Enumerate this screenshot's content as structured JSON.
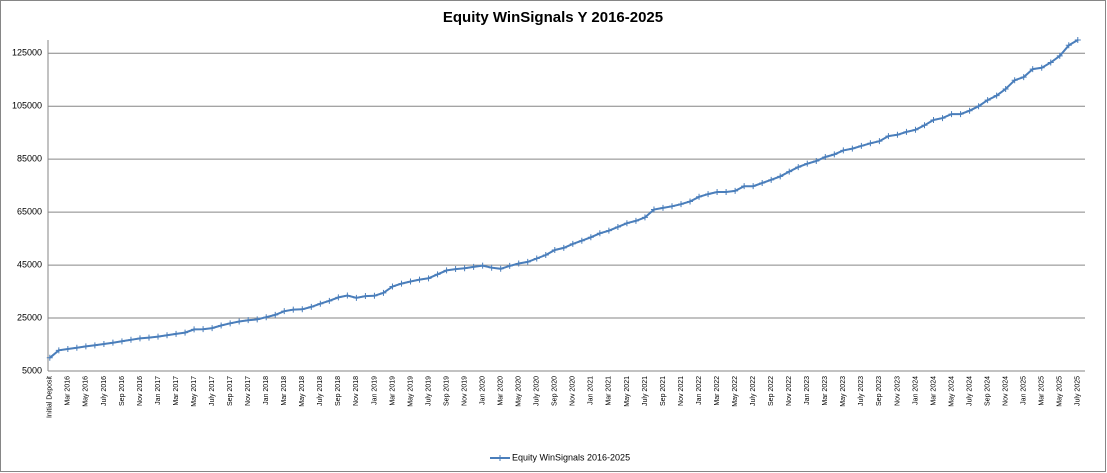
{
  "chart_data": {
    "type": "line",
    "title": "Equity WinSignals Y 2016-2025",
    "categories": [
      "Initial Deposit",
      null,
      "Mar 2016",
      null,
      "May 2016",
      null,
      "July 2016",
      null,
      "Sep 2016",
      null,
      "Nov 2016",
      null,
      "Jan 2017",
      null,
      "Mar 2017",
      null,
      "May 2017",
      null,
      "July 2017",
      null,
      "Sep 2017",
      null,
      "Nov 2017",
      null,
      "Jan 2018",
      null,
      "Mar 2018",
      null,
      "May 2018",
      null,
      "July 2018",
      null,
      "Sep 2018",
      null,
      "Nov 2018",
      null,
      "Jan 2019",
      null,
      "Mar 2019",
      null,
      "May 2019",
      null,
      "July 2019",
      null,
      "Sep 2019",
      null,
      "Nov 2019",
      null,
      "Jan 2020",
      null,
      "Mar 2020",
      null,
      "May 2020",
      null,
      "July 2020",
      null,
      "Sep 2020",
      null,
      "Nov 2020",
      null,
      "Jan 2021",
      null,
      "Mar 2021",
      null,
      "May 2021",
      null,
      "July 2021",
      null,
      "Sep 2021",
      null,
      "Nov 2021",
      null,
      "Jan 2022",
      null,
      "Mar 2022",
      null,
      "May 2022",
      null,
      "July 2022",
      null,
      "Sep 2022",
      null,
      "Nov 2022",
      null,
      "Jan 2023",
      null,
      "Mar 2023",
      null,
      "May 2023",
      null,
      "July 2023",
      null,
      "Sep 2023",
      null,
      "Nov 2023",
      null,
      "Jan 2024",
      null,
      "Mar 2024",
      null,
      "May 2024",
      null,
      "July 2024",
      null,
      "Sep 2024",
      null,
      "Nov 2024",
      null,
      "Jan 2025",
      null,
      "Mar 2025",
      null,
      "May 2025",
      null,
      "July 2025"
    ],
    "series": [
      {
        "name": "Equity WinSignals 2016-2025",
        "color": "#4a7ebb",
        "values": [
          10000,
          12800,
          13300,
          13800,
          14300,
          14700,
          15200,
          15700,
          16200,
          16800,
          17300,
          17600,
          18000,
          18500,
          19000,
          19500,
          20700,
          20800,
          21200,
          22200,
          23000,
          23700,
          24200,
          24500,
          25300,
          26200,
          27600,
          28200,
          28300,
          29200,
          30400,
          31500,
          32800,
          33500,
          32600,
          33300,
          33400,
          34500,
          36900,
          38000,
          38800,
          39500,
          40000,
          41500,
          43000,
          43500,
          43800,
          44300,
          44800,
          44000,
          43600,
          44700,
          45600,
          46200,
          47500,
          48800,
          50700,
          51500,
          53000,
          54200,
          55500,
          57000,
          58000,
          59400,
          60800,
          61700,
          63000,
          66000,
          66600,
          67200,
          68000,
          69000,
          70800,
          71800,
          72600,
          72600,
          73000,
          74800,
          74800,
          76000,
          77200,
          78500,
          80300,
          82000,
          83300,
          84300,
          85800,
          86800,
          88300,
          89000,
          90000,
          91000,
          91800,
          93700,
          94200,
          95300,
          96100,
          97800,
          99800,
          100500,
          102000,
          102000,
          103300,
          105000,
          107300,
          109000,
          111500,
          114800,
          116000,
          119000,
          119500,
          121500,
          124000,
          128000,
          130000
        ]
      }
    ],
    "ylim": [
      5000,
      130000
    ],
    "yticks": [
      5000,
      25000,
      45000,
      65000,
      85000,
      105000,
      125000
    ],
    "grid": true,
    "legend": "bottom"
  }
}
